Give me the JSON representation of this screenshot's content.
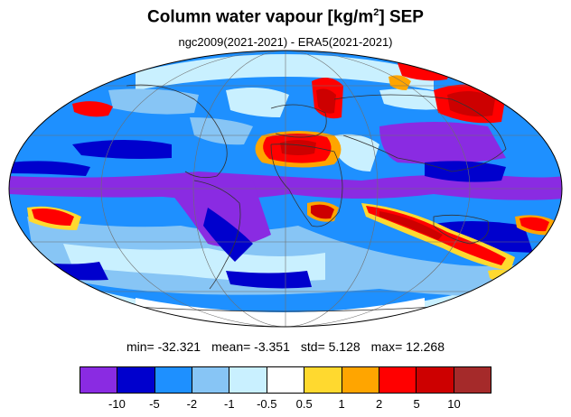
{
  "header": {
    "title_main": "Column water vapour [kg/m",
    "title_sup": "2",
    "title_end": "] SEP",
    "subtitle": "ngc2009(2021-2021) - ERA5(2021-2021)"
  },
  "stats": {
    "min": "min= -32.321",
    "mean": "mean= -3.351",
    "std": "std= 5.128",
    "max": "max= 12.268"
  },
  "colorbar": {
    "colors": [
      "#8a2be2",
      "#0000cd",
      "#1e90ff",
      "#87c5f5",
      "#c9f0ff",
      "#ffffff",
      "#ffd92f",
      "#ffa500",
      "#ff0000",
      "#cd0000",
      "#a52a2a"
    ],
    "labels": [
      "-10",
      "-5",
      "-2",
      "-1",
      "-0.5",
      "0.5",
      "1",
      "2",
      "5",
      "10"
    ]
  },
  "colors": {
    "background": "#ffffff",
    "ocean_base": "#1e90ff"
  }
}
